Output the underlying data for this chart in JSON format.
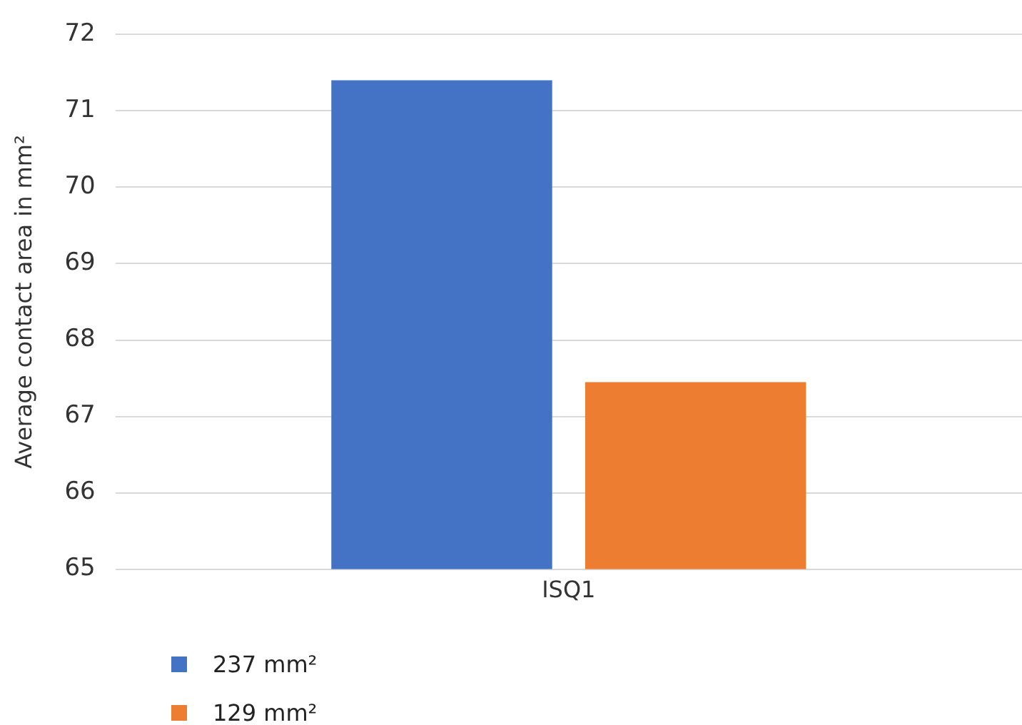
{
  "chart_data": {
    "type": "bar",
    "ylabel": "Average contact area in mm²",
    "categories": [
      "ISQ1"
    ],
    "series": [
      {
        "name": "237 mm²",
        "color": "#4472c4",
        "values": [
          71.4
        ]
      },
      {
        "name": "129 mm²",
        "color": "#ed7d31",
        "values": [
          67.45
        ]
      }
    ],
    "ylim": [
      65,
      72
    ],
    "yticks": [
      65,
      66,
      67,
      68,
      69,
      70,
      71,
      72
    ],
    "grid": "y",
    "legend": "bottom left"
  }
}
